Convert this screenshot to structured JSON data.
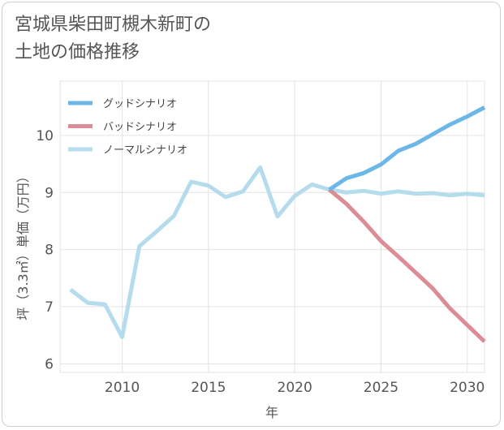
{
  "chart_data": {
    "type": "line",
    "title_lines": [
      "宮城県柴田町槻木新町の",
      "土地の価格推移"
    ],
    "xlabel": "年",
    "ylabel": "坪（3.3㎡）単価（万円）",
    "xlim": [
      2006.4,
      2031
    ],
    "ylim": [
      5.85,
      10.95
    ],
    "x_ticks": [
      2010,
      2015,
      2020,
      2025,
      2030
    ],
    "y_ticks": [
      6,
      7,
      8,
      9,
      10
    ],
    "legend_position": "top-left",
    "series": [
      {
        "name": "グッドシナリオ",
        "color": "#6cb6e8",
        "x": [
          2022,
          2023,
          2024,
          2025,
          2026,
          2027,
          2028,
          2029,
          2030,
          2031
        ],
        "y": [
          9.05,
          9.25,
          9.34,
          9.49,
          9.73,
          9.85,
          10.02,
          10.19,
          10.33,
          10.49
        ]
      },
      {
        "name": "バッドシナリオ",
        "color": "#dc8c94",
        "x": [
          2022,
          2023,
          2024,
          2025,
          2026,
          2027,
          2028,
          2029,
          2030,
          2031
        ],
        "y": [
          9.05,
          8.8,
          8.49,
          8.15,
          7.88,
          7.6,
          7.32,
          6.97,
          6.68,
          6.39
        ]
      },
      {
        "name": "ノーマルシナリオ",
        "color": "#b5dcec",
        "x": [
          2007,
          2008,
          2009,
          2010,
          2011,
          2012,
          2013,
          2014,
          2015,
          2016,
          2017,
          2018,
          2019,
          2020,
          2021,
          2022,
          2023,
          2024,
          2025,
          2026,
          2027,
          2028,
          2029,
          2030,
          2031
        ],
        "y": [
          7.3,
          7.07,
          7.04,
          6.47,
          8.06,
          8.32,
          8.59,
          9.19,
          9.12,
          8.92,
          9.02,
          9.44,
          8.58,
          8.94,
          9.14,
          9.05,
          9.0,
          9.03,
          8.98,
          9.02,
          8.98,
          8.99,
          8.95,
          8.98,
          8.95
        ]
      }
    ]
  }
}
